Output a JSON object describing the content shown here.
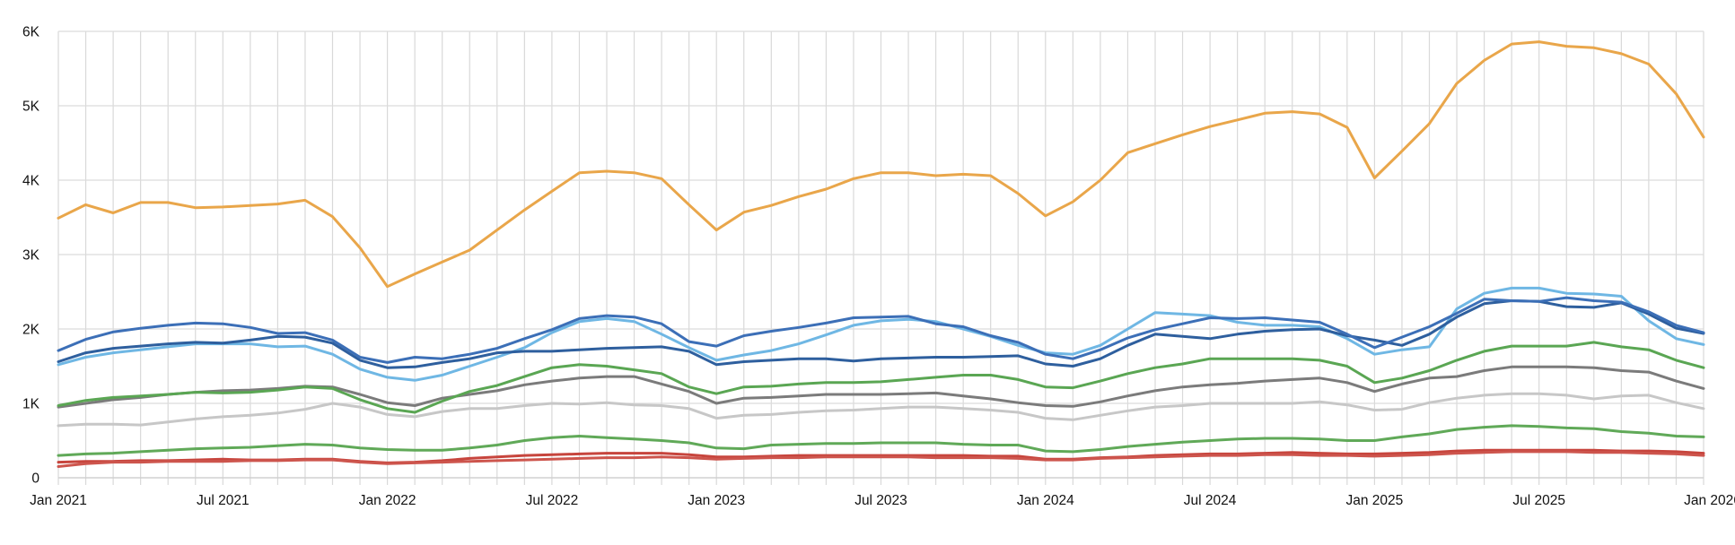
{
  "chart_data": {
    "type": "line",
    "title": "",
    "legend": "none",
    "x": {
      "unit": "month",
      "tick_every": 6,
      "labels": [
        "Jan 2021",
        "Feb 2021",
        "Mar 2021",
        "Apr 2021",
        "May 2021",
        "Jun 2021",
        "Jul 2021",
        "Aug 2021",
        "Sep 2021",
        "Oct 2021",
        "Nov 2021",
        "Dec 2021",
        "Jan 2022",
        "Feb 2022",
        "Mar 2022",
        "Apr 2022",
        "May 2022",
        "Jun 2022",
        "Jul 2022",
        "Aug 2022",
        "Sep 2022",
        "Oct 2022",
        "Nov 2022",
        "Dec 2022",
        "Jan 2023",
        "Feb 2023",
        "Mar 2023",
        "Apr 2023",
        "May 2023",
        "Jun 2023",
        "Jul 2023",
        "Aug 2023",
        "Sep 2023",
        "Oct 2023",
        "Nov 2023",
        "Dec 2023",
        "Jan 2024",
        "Feb 2024",
        "Mar 2024",
        "Apr 2024",
        "May 2024",
        "Jun 2024",
        "Jul 2024",
        "Aug 2024",
        "Sep 2024",
        "Oct 2024",
        "Nov 2024",
        "Dec 2024",
        "Jan 2025",
        "Feb 2025",
        "Mar 2025",
        "Apr 2025",
        "May 2025",
        "Jun 2025",
        "Jul 2025",
        "Aug 2025",
        "Sep 2025",
        "Oct 2025",
        "Nov 2025",
        "Dec 2025",
        "Jan 2026"
      ]
    },
    "y": {
      "range": [
        0,
        6000
      ],
      "grid_interval": 1000,
      "ticks": [
        {
          "value": 0,
          "label": "0"
        },
        {
          "value": 1000,
          "label": "1K"
        },
        {
          "value": 2000,
          "label": "2K"
        },
        {
          "value": 3000,
          "label": "3K"
        },
        {
          "value": 4000,
          "label": "4K"
        },
        {
          "value": 5000,
          "label": "5K"
        },
        {
          "value": 6000,
          "label": "6K"
        }
      ]
    },
    "grid": {
      "vertical": "every month",
      "horizontal": "every 1K"
    },
    "series": [
      {
        "name": "light-gray",
        "color": "#C7C7C7",
        "values": [
          700,
          720,
          720,
          710,
          750,
          790,
          820,
          840,
          870,
          920,
          1000,
          950,
          850,
          820,
          890,
          930,
          930,
          970,
          1000,
          990,
          1010,
          980,
          970,
          930,
          800,
          840,
          850,
          880,
          900,
          910,
          930,
          950,
          950,
          930,
          910,
          880,
          800,
          780,
          840,
          900,
          950,
          970,
          1000,
          1000,
          1000,
          1000,
          1020,
          980,
          910,
          920,
          1010,
          1070,
          1110,
          1130,
          1130,
          1110,
          1060,
          1100,
          1110,
          1010,
          930
        ]
      },
      {
        "name": "dark-gray",
        "color": "#7B7B7B",
        "values": [
          950,
          1000,
          1050,
          1080,
          1120,
          1150,
          1170,
          1180,
          1200,
          1230,
          1220,
          1120,
          1010,
          970,
          1070,
          1120,
          1170,
          1250,
          1300,
          1340,
          1360,
          1360,
          1260,
          1160,
          1000,
          1070,
          1080,
          1100,
          1120,
          1120,
          1120,
          1130,
          1140,
          1100,
          1060,
          1010,
          970,
          960,
          1020,
          1100,
          1170,
          1220,
          1250,
          1270,
          1300,
          1320,
          1340,
          1280,
          1160,
          1260,
          1340,
          1360,
          1440,
          1490,
          1490,
          1490,
          1480,
          1440,
          1420,
          1300,
          1200
        ]
      },
      {
        "name": "green-upper",
        "color": "#5AA653",
        "values": [
          970,
          1040,
          1080,
          1100,
          1120,
          1150,
          1140,
          1150,
          1180,
          1220,
          1200,
          1050,
          930,
          880,
          1030,
          1160,
          1240,
          1360,
          1480,
          1520,
          1500,
          1450,
          1400,
          1220,
          1130,
          1220,
          1230,
          1260,
          1280,
          1280,
          1290,
          1320,
          1350,
          1380,
          1380,
          1320,
          1220,
          1210,
          1300,
          1400,
          1480,
          1530,
          1600,
          1600,
          1600,
          1600,
          1580,
          1500,
          1280,
          1340,
          1440,
          1580,
          1700,
          1770,
          1770,
          1770,
          1820,
          1760,
          1720,
          1580,
          1480
        ]
      },
      {
        "name": "green-lower",
        "color": "#60A958",
        "values": [
          300,
          320,
          330,
          350,
          370,
          390,
          400,
          410,
          430,
          450,
          440,
          400,
          380,
          370,
          370,
          400,
          440,
          500,
          540,
          560,
          540,
          520,
          500,
          470,
          400,
          390,
          440,
          450,
          460,
          460,
          470,
          470,
          470,
          450,
          440,
          440,
          360,
          350,
          380,
          420,
          450,
          480,
          500,
          520,
          530,
          530,
          520,
          500,
          500,
          550,
          590,
          650,
          680,
          700,
          690,
          670,
          660,
          620,
          600,
          560,
          550
        ]
      },
      {
        "name": "red-upper",
        "color": "#C7453D",
        "values": [
          210,
          220,
          220,
          230,
          230,
          240,
          250,
          240,
          240,
          250,
          250,
          220,
          200,
          210,
          230,
          260,
          280,
          300,
          310,
          320,
          330,
          330,
          330,
          310,
          280,
          280,
          290,
          300,
          300,
          300,
          300,
          300,
          300,
          300,
          290,
          290,
          250,
          250,
          270,
          280,
          300,
          310,
          320,
          320,
          330,
          340,
          330,
          320,
          320,
          330,
          340,
          360,
          370,
          370,
          370,
          370,
          370,
          360,
          360,
          350,
          330
        ]
      },
      {
        "name": "red-lower",
        "color": "#CD554D",
        "values": [
          150,
          190,
          210,
          210,
          220,
          220,
          220,
          230,
          230,
          240,
          240,
          210,
          190,
          200,
          210,
          220,
          230,
          240,
          250,
          260,
          270,
          270,
          280,
          270,
          250,
          260,
          270,
          270,
          280,
          280,
          280,
          280,
          270,
          270,
          270,
          260,
          240,
          240,
          260,
          270,
          280,
          290,
          300,
          300,
          310,
          310,
          300,
          300,
          290,
          300,
          310,
          330,
          340,
          350,
          350,
          350,
          340,
          340,
          330,
          320,
          300
        ]
      },
      {
        "name": "light-blue",
        "color": "#6FB7E4",
        "values": [
          1520,
          1620,
          1680,
          1720,
          1760,
          1800,
          1800,
          1800,
          1760,
          1770,
          1660,
          1460,
          1350,
          1310,
          1380,
          1500,
          1620,
          1750,
          1950,
          2100,
          2140,
          2100,
          1930,
          1750,
          1580,
          1650,
          1710,
          1800,
          1920,
          2050,
          2110,
          2130,
          2100,
          2000,
          1900,
          1780,
          1680,
          1660,
          1780,
          2000,
          2220,
          2200,
          2180,
          2090,
          2050,
          2050,
          2030,
          1870,
          1660,
          1720,
          1760,
          2270,
          2480,
          2550,
          2550,
          2480,
          2470,
          2440,
          2110,
          1870,
          1790
        ]
      },
      {
        "name": "dark-blue-lower",
        "color": "#2E5F9E",
        "values": [
          1560,
          1680,
          1740,
          1770,
          1800,
          1820,
          1810,
          1850,
          1900,
          1890,
          1810,
          1580,
          1480,
          1490,
          1550,
          1600,
          1680,
          1700,
          1700,
          1720,
          1740,
          1750,
          1760,
          1700,
          1520,
          1560,
          1580,
          1600,
          1600,
          1570,
          1600,
          1610,
          1620,
          1620,
          1630,
          1640,
          1530,
          1500,
          1600,
          1780,
          1930,
          1900,
          1870,
          1930,
          1970,
          1990,
          2000,
          1910,
          1850,
          1780,
          1930,
          2160,
          2340,
          2380,
          2370,
          2300,
          2290,
          2350,
          2200,
          2010,
          1940
        ]
      },
      {
        "name": "dark-blue-upper",
        "color": "#3C6FB7",
        "values": [
          1710,
          1860,
          1960,
          2010,
          2050,
          2080,
          2070,
          2020,
          1940,
          1950,
          1850,
          1620,
          1550,
          1620,
          1600,
          1660,
          1740,
          1870,
          1990,
          2140,
          2180,
          2160,
          2070,
          1830,
          1770,
          1910,
          1970,
          2020,
          2080,
          2150,
          2160,
          2170,
          2070,
          2030,
          1910,
          1820,
          1660,
          1600,
          1720,
          1880,
          1990,
          2070,
          2150,
          2140,
          2150,
          2120,
          2090,
          1930,
          1750,
          1890,
          2030,
          2210,
          2400,
          2380,
          2370,
          2420,
          2380,
          2360,
          2230,
          2050,
          1950
        ]
      },
      {
        "name": "orange",
        "color": "#E9A64A",
        "values": [
          3490,
          3670,
          3560,
          3700,
          3700,
          3630,
          3640,
          3660,
          3680,
          3730,
          3510,
          3090,
          2570,
          2740,
          2900,
          3060,
          3330,
          3600,
          3850,
          4100,
          4120,
          4100,
          4020,
          3670,
          3330,
          3570,
          3660,
          3780,
          3880,
          4020,
          4100,
          4100,
          4060,
          4080,
          4060,
          3820,
          3520,
          3710,
          4000,
          4370,
          4490,
          4610,
          4720,
          4810,
          4900,
          4920,
          4890,
          4710,
          4030,
          4390,
          4760,
          5300,
          5610,
          5830,
          5860,
          5800,
          5780,
          5700,
          5560,
          5160,
          4580
        ]
      }
    ]
  }
}
